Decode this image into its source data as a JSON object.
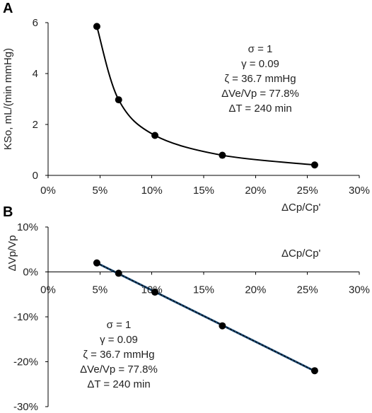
{
  "chart_data": [
    {
      "panel": "A",
      "type": "line",
      "ylabel": "KSo, mL/(min mmHg)",
      "xlabel": "ΔCp/Cp'",
      "xlim": [
        0,
        0.3
      ],
      "ylim": [
        0,
        6
      ],
      "xticks": [
        0,
        0.05,
        0.1,
        0.15,
        0.2,
        0.25,
        0.3
      ],
      "xtick_labels": [
        "0%",
        "5%",
        "10%",
        "15%",
        "20%",
        "25%",
        "30%"
      ],
      "yticks": [
        0,
        2,
        4,
        6
      ],
      "ytick_labels": [
        "0",
        "2",
        "4",
        "6"
      ],
      "series": [
        {
          "x": [
            0.047,
            0.068,
            0.103,
            0.168,
            0.257
          ],
          "y": [
            5.85,
            2.97,
            1.57,
            0.79,
            0.41
          ]
        }
      ],
      "annotation": [
        "σ = 1",
        "γ = 0.09",
        "ζ = 36.7 mmHg",
        "ΔVe/Vp = 77.8%",
        "ΔT = 240 min"
      ]
    },
    {
      "panel": "B",
      "type": "line",
      "ylabel": "ΔVp/Vp",
      "xlabel": "ΔCp/Cp'",
      "xlim": [
        0,
        0.3
      ],
      "ylim": [
        -0.3,
        0.1
      ],
      "xticks": [
        0,
        0.05,
        0.1,
        0.15,
        0.2,
        0.25,
        0.3
      ],
      "xtick_labels": [
        "0%",
        "5%",
        "10%",
        "15%",
        "20%",
        "25%",
        "30%"
      ],
      "yticks": [
        0.1,
        0,
        -0.1,
        -0.2,
        -0.3
      ],
      "ytick_labels": [
        "10%",
        "0%",
        "-10%",
        "-20%",
        "-30%"
      ],
      "series": [
        {
          "x": [
            0.047,
            0.068,
            0.103,
            0.168,
            0.257
          ],
          "y": [
            0.02,
            -0.003,
            -0.045,
            -0.12,
            -0.22
          ]
        }
      ],
      "annotation": [
        "σ = 1",
        "γ = 0.09",
        "ζ = 36.7 mmHg",
        "ΔVe/Vp = 77.8%",
        "ΔT = 240 min"
      ]
    }
  ]
}
